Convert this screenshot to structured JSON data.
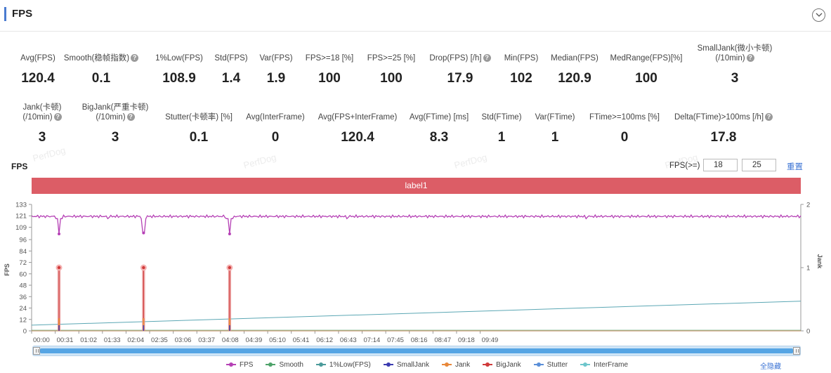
{
  "header": {
    "title": "FPS"
  },
  "stats_row1": [
    {
      "label": "Avg(FPS)",
      "value": "120.4",
      "help": false
    },
    {
      "label": "Smooth(稳帧指数)",
      "value": "0.1",
      "help": true
    },
    {
      "label": "1%Low(FPS)",
      "value": "108.9",
      "help": false
    },
    {
      "label": "Std(FPS)",
      "value": "1.4",
      "help": false
    },
    {
      "label": "Var(FPS)",
      "value": "1.9",
      "help": false
    },
    {
      "label": "FPS>=18 [%]",
      "value": "100",
      "help": false
    },
    {
      "label": "FPS>=25 [%]",
      "value": "100",
      "help": false
    },
    {
      "label": "Drop(FPS) [/h]",
      "value": "17.9",
      "help": true
    },
    {
      "label": "Min(FPS)",
      "value": "102",
      "help": false
    },
    {
      "label": "Median(FPS)",
      "value": "120.9",
      "help": false
    },
    {
      "label": "MedRange(FPS)[%]",
      "value": "100",
      "help": false
    },
    {
      "label": "SmallJank(微小卡顿)",
      "label2": "(/10min)",
      "value": "3",
      "help": true
    }
  ],
  "stats_row2": [
    {
      "label": "Jank(卡顿)",
      "label2": "(/10min)",
      "value": "3",
      "help": true
    },
    {
      "label": "BigJank(严重卡顿)",
      "label2": "(/10min)",
      "value": "3",
      "help": true
    },
    {
      "label": "Stutter(卡顿率) [%]",
      "value": "0.1",
      "help": false
    },
    {
      "label": "Avg(InterFrame)",
      "value": "0",
      "help": false
    },
    {
      "label": "Avg(FPS+InterFrame)",
      "value": "120.4",
      "help": false
    },
    {
      "label": "Avg(FTime) [ms]",
      "value": "8.3",
      "help": false
    },
    {
      "label": "Std(FTime)",
      "value": "1",
      "help": false
    },
    {
      "label": "Var(FTime)",
      "value": "1",
      "help": false
    },
    {
      "label": "FTime>=100ms [%]",
      "value": "0",
      "help": false
    },
    {
      "label": "Delta(FTime)>100ms [/h]",
      "value": "17.8",
      "help": true
    }
  ],
  "watermark": "PerfDog",
  "chart_controls": {
    "title": "FPS",
    "threshold_label": "FPS(>=)",
    "threshold1": "18",
    "threshold2": "25",
    "reset_label": "重置",
    "label_bar": "label1",
    "hide_all_label": "全隐藏"
  },
  "chart_data": {
    "type": "line",
    "title": "FPS",
    "xlabel": "",
    "ylabel": "FPS",
    "y2label": "Jank",
    "x_ticks": [
      "00:00",
      "00:31",
      "01:02",
      "01:33",
      "02:04",
      "02:35",
      "03:06",
      "03:37",
      "04:08",
      "04:39",
      "05:10",
      "05:41",
      "06:12",
      "06:43",
      "07:14",
      "07:45",
      "08:16",
      "08:47",
      "09:18",
      "09:49"
    ],
    "x_range_seconds": [
      0,
      1010
    ],
    "y_ticks": [
      0,
      12,
      24,
      36,
      48,
      60,
      72,
      84,
      96,
      109,
      121,
      133
    ],
    "ylim": [
      0,
      133
    ],
    "y2_ticks": [
      0,
      1,
      2
    ],
    "y2lim": [
      0,
      2
    ],
    "grid": false,
    "legend_position": "bottom",
    "series": [
      {
        "name": "FPS",
        "color": "#b540b5",
        "baseline": 120.4,
        "dips": [
          {
            "t": 36,
            "v": 102
          },
          {
            "t": 147,
            "v": 103
          },
          {
            "t": 260,
            "v": 102
          }
        ]
      },
      {
        "name": "Smooth",
        "color": "#4ea36a"
      },
      {
        "name": "1%Low(FPS)",
        "color": "#4a9a9a"
      },
      {
        "name": "SmallJank",
        "color": "#3c3cb0"
      },
      {
        "name": "Jank",
        "color": "#e8883a"
      },
      {
        "name": "BigJank",
        "color": "#d03a3a",
        "events_seconds": [
          36,
          147,
          260
        ],
        "event_value": 1
      },
      {
        "name": "Stutter",
        "color": "#5b8fd8",
        "start_percent": 0.0,
        "end_percent": 0.36
      },
      {
        "name": "InterFrame",
        "color": "#6ec6cc"
      }
    ]
  }
}
